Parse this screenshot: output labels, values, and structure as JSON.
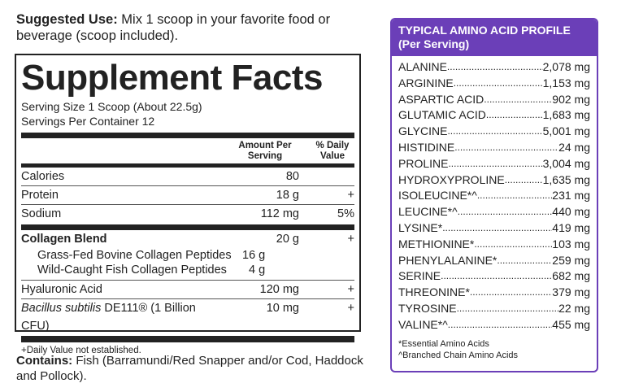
{
  "suggested_use": {
    "label": "Suggested Use:",
    "text": " Mix 1 scoop in your favorite food or beverage (scoop included)."
  },
  "facts": {
    "title": "Supplement Facts",
    "serving_size": "Serving Size 1 Scoop (About 22.5g)",
    "servings_per_container": "Servings Per Container 12",
    "col_amount": "Amount Per Serving",
    "col_dv": "% Daily Value",
    "rows": [
      {
        "name": "Calories",
        "amount": "80",
        "dv": ""
      },
      {
        "name": "Protein",
        "amount": "18 g",
        "dv": "+"
      },
      {
        "name": "Sodium",
        "amount": "112 mg",
        "dv": "5%"
      },
      {
        "name": "Collagen Blend",
        "amount": "20 g",
        "dv": "+"
      },
      {
        "name": "Grass-Fed Bovine Collagen Peptides",
        "amount": "16 g",
        "dv": ""
      },
      {
        "name": "Wild-Caught Fish Collagen Peptides",
        "amount": "4 g",
        "dv": ""
      },
      {
        "name": "Hyaluronic Acid",
        "amount": "120 mg",
        "dv": "+"
      },
      {
        "name": "Bacillus subtilis",
        "name_suffix": " DE111® (1 Billion CFU)",
        "amount": "10 mg",
        "dv": "+"
      }
    ],
    "footnote": "+Daily Value not established."
  },
  "contains": {
    "label": "Contains:",
    "text": " Fish (Barramundi/Red Snapper and/or Cod, Haddock and Pollock)."
  },
  "amino": {
    "title": "TYPICAL AMINO ACID PROFILE",
    "subtitle": "(Per Serving)",
    "accent": "#6b3fb8",
    "items": [
      {
        "name": "ALANINE",
        "value": "2,078 mg"
      },
      {
        "name": "ARGININE",
        "value": "1,153 mg"
      },
      {
        "name": "ASPARTIC ACID",
        "value": "902 mg"
      },
      {
        "name": "GLUTAMIC ACID",
        "value": "1,683 mg"
      },
      {
        "name": "GLYCINE",
        "value": "5,001 mg"
      },
      {
        "name": "HISTIDINE",
        "value": "24 mg"
      },
      {
        "name": "PROLINE",
        "value": "3,004 mg"
      },
      {
        "name": "HYDROXYPROLINE",
        "value": "1,635 mg"
      },
      {
        "name": "ISOLEUCINE*^",
        "value": "231 mg"
      },
      {
        "name": "LEUCINE*^",
        "value": "440 mg"
      },
      {
        "name": "LYSINE*",
        "value": "419 mg"
      },
      {
        "name": "METHIONINE*",
        "value": "103 mg"
      },
      {
        "name": "PHENYLALANINE*",
        "value": "259 mg"
      },
      {
        "name": "SERINE",
        "value": "682 mg"
      },
      {
        "name": "THREONINE*",
        "value": "379 mg"
      },
      {
        "name": "TYROSINE",
        "value": "22 mg"
      },
      {
        "name": "VALINE*^",
        "value": "455 mg"
      }
    ],
    "note1": "*Essential Amino Acids",
    "note2": "^Branched Chain Amino Acids"
  }
}
